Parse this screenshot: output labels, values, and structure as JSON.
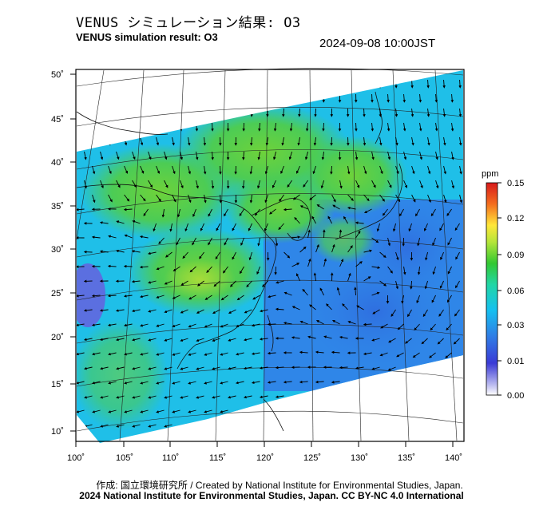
{
  "header": {
    "title_jp": "VENUS シミュレーション結果: O3",
    "title_en": "VENUS simulation result: O3",
    "timestamp": "2024-09-08 10:00JST"
  },
  "map": {
    "lon_ticks": [
      "100˚",
      "105˚",
      "110˚",
      "115˚",
      "120˚",
      "125˚",
      "130˚",
      "135˚",
      "140˚"
    ],
    "lat_ticks": [
      "50˚",
      "45˚",
      "40˚",
      "35˚",
      "30˚",
      "25˚",
      "20˚",
      "15˚",
      "10˚"
    ],
    "lon_range": [
      100,
      142
    ],
    "lat_range": [
      9,
      51
    ],
    "field": "O3 concentration with wind vectors"
  },
  "colorbar": {
    "unit": "ppm",
    "labels": [
      "0.15",
      "0.12",
      "0.09",
      "0.06",
      "0.03",
      "0.01",
      "0.00"
    ],
    "colors": [
      "#d7191c",
      "#f46d1e",
      "#fdae3c",
      "#ffe73a",
      "#b4e53a",
      "#32c832",
      "#21d6a6",
      "#15c0f0",
      "#2f7fe6",
      "#3a3ad6",
      "#ffffff"
    ]
  },
  "footer": {
    "credit": "作成: 国立環境研究所 / Created by National Institute for Environmental Studies, Japan.",
    "license": "2024 National Institute for Environmental Studies, Japan. CC BY-NC 4.0 International"
  }
}
